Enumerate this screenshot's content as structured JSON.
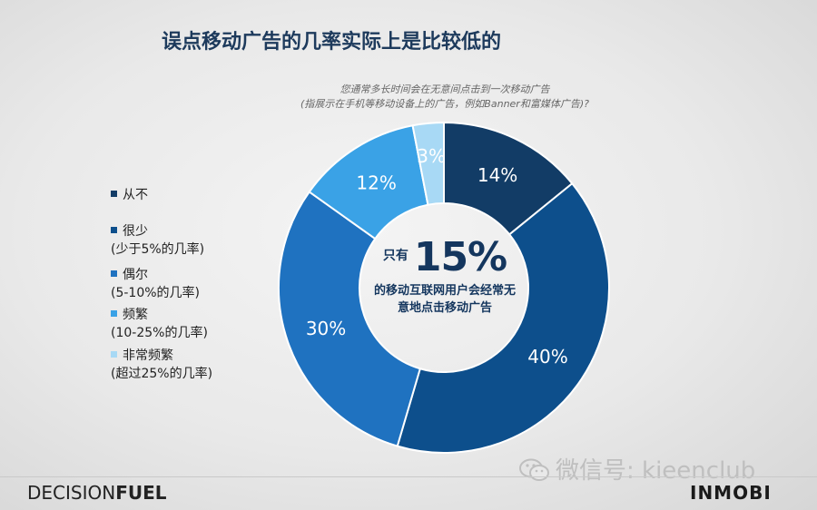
{
  "title": "误点移动广告的几率实际上是比较低的",
  "question_line1": "您通常多长时间会在无意间点击到一次移动广告",
  "question_line2": "(指展示在手机等移动设备上的广告，例如Banner和富媒体广告)?",
  "colors": {
    "never": "#123c66",
    "rarely": "#0d4f8c",
    "occasionally": "#1f72c0",
    "frequently": "#3aa2e6",
    "very_frequently": "#a8d9f5"
  },
  "legend": [
    {
      "label": "从不",
      "sub": ""
    },
    {
      "label": "很少",
      "sub": "(少于5%的几率)"
    },
    {
      "label": "偶尔",
      "sub": "(5-10%的几率)"
    },
    {
      "label": "频繁",
      "sub": "(10-25%的几率)"
    },
    {
      "label": "非常频繁",
      "sub": "(超过25%的几率)"
    }
  ],
  "center": {
    "prefix": "只有",
    "big": "15%",
    "desc_line1": "的移动互联网用户会经常无",
    "desc_line2": "意地点击移动广告"
  },
  "chart_data": {
    "type": "pie",
    "donut": true,
    "categories": [
      "从不",
      "很少",
      "偶尔",
      "频繁",
      "非常频繁"
    ],
    "values": [
      14,
      40,
      30,
      12,
      3
    ],
    "labels": [
      "14%",
      "40%",
      "30%",
      "12%",
      "3%"
    ],
    "legend_position": "left"
  },
  "watermark": "微信号: kieenclub",
  "brand_left_a": "DECISION",
  "brand_left_b": "FUEL",
  "brand_right": "INMOBI"
}
